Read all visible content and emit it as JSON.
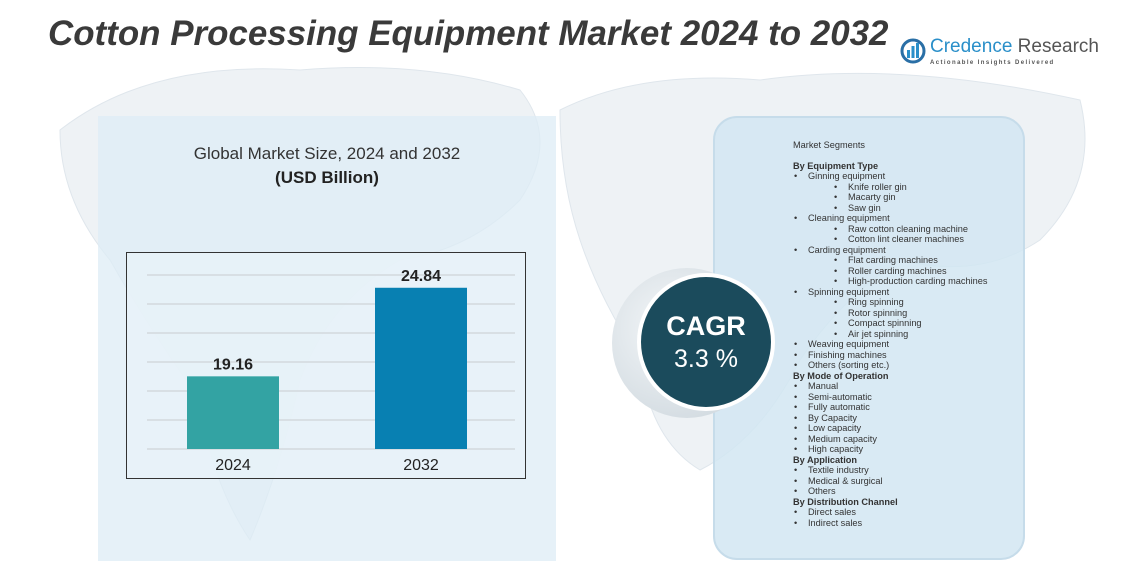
{
  "title": "Cotton Processing Equipment Market 2024 to 2032",
  "logo": {
    "name_part1": "Credence",
    "name_part2": "Research",
    "tagline": "Actionable Insights Delivered"
  },
  "chart_data": {
    "type": "bar",
    "title": "Global Market Size, 2024 and 2032",
    "subtitle": "(USD Billion)",
    "categories": [
      "2024",
      "2032"
    ],
    "values": [
      19.16,
      24.84
    ],
    "value_labels": [
      "19.16",
      "24.84"
    ],
    "colors": [
      "#33a3a3",
      "#0880b2"
    ],
    "grid": true,
    "xlabel": "",
    "ylabel": ""
  },
  "cagr": {
    "label": "CAGR",
    "value": "3.3 %"
  },
  "segments": {
    "heading": "Market Segments",
    "items": [
      {
        "level": "h",
        "text": "By Equipment Type"
      },
      {
        "level": "l1",
        "text": "Ginning equipment"
      },
      {
        "level": "l2",
        "text": "Knife roller gin"
      },
      {
        "level": "l2",
        "text": "Macarty gin"
      },
      {
        "level": "l2",
        "text": "Saw gin"
      },
      {
        "level": "l1",
        "text": "Cleaning equipment"
      },
      {
        "level": "l2",
        "text": "Raw cotton cleaning machine"
      },
      {
        "level": "l2",
        "text": "Cotton lint cleaner machines"
      },
      {
        "level": "l1",
        "text": "Carding equipment"
      },
      {
        "level": "l2",
        "text": "Flat carding machines"
      },
      {
        "level": "l2",
        "text": "Roller carding machines"
      },
      {
        "level": "l2",
        "text": "High-production carding machines"
      },
      {
        "level": "l1",
        "text": "Spinning equipment"
      },
      {
        "level": "l2",
        "text": "Ring spinning"
      },
      {
        "level": "l2",
        "text": "Rotor spinning"
      },
      {
        "level": "l2",
        "text": "Compact spinning"
      },
      {
        "level": "l2",
        "text": "Air jet spinning"
      },
      {
        "level": "l1",
        "text": "Weaving equipment"
      },
      {
        "level": "l1",
        "text": "Finishing machines"
      },
      {
        "level": "l1",
        "text": "Others (sorting etc.)"
      },
      {
        "level": "h",
        "text": "By Mode of Operation"
      },
      {
        "level": "l1",
        "text": "Manual"
      },
      {
        "level": "l1",
        "text": "Semi-automatic"
      },
      {
        "level": "l1",
        "text": "Fully automatic"
      },
      {
        "level": "l1",
        "text": " By Capacity"
      },
      {
        "level": "l1",
        "text": "Low capacity"
      },
      {
        "level": "l1",
        "text": "Medium capacity"
      },
      {
        "level": "l1",
        "text": "High capacity"
      },
      {
        "level": "h",
        "text": " By Application"
      },
      {
        "level": "l1",
        "text": "Textile industry"
      },
      {
        "level": "l1",
        "text": "Medical & surgical"
      },
      {
        "level": "l1",
        "text": "Others"
      },
      {
        "level": "h",
        "text": " By Distribution Channel"
      },
      {
        "level": "l1",
        "text": "Direct sales"
      },
      {
        "level": "l1",
        "text": "Indirect sales"
      }
    ]
  }
}
